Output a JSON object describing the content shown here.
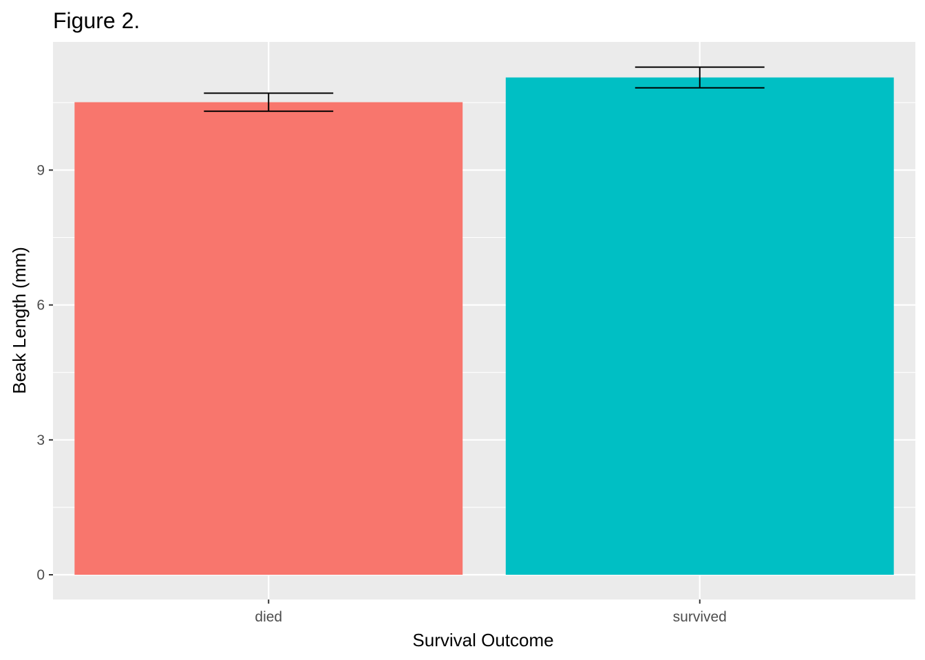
{
  "chart_data": {
    "type": "bar",
    "title": "Figure 2.",
    "xlabel": "Survival Outcome",
    "ylabel": "Beak Length (mm)",
    "categories": [
      "died",
      "survived"
    ],
    "values": [
      10.51,
      11.06
    ],
    "error_low": [
      10.31,
      10.83
    ],
    "error_high": [
      10.71,
      11.29
    ],
    "ylim": [
      -0.55,
      11.85
    ],
    "yticks": [
      0,
      3,
      6,
      9
    ],
    "ytick_labels": [
      "0",
      "3",
      "6",
      "9"
    ],
    "grid": true,
    "legend": "none",
    "colors": [
      "#F8766D",
      "#00BFC4"
    ],
    "panel_background": "#EBEBEB",
    "error_bar_color": "#000000"
  }
}
